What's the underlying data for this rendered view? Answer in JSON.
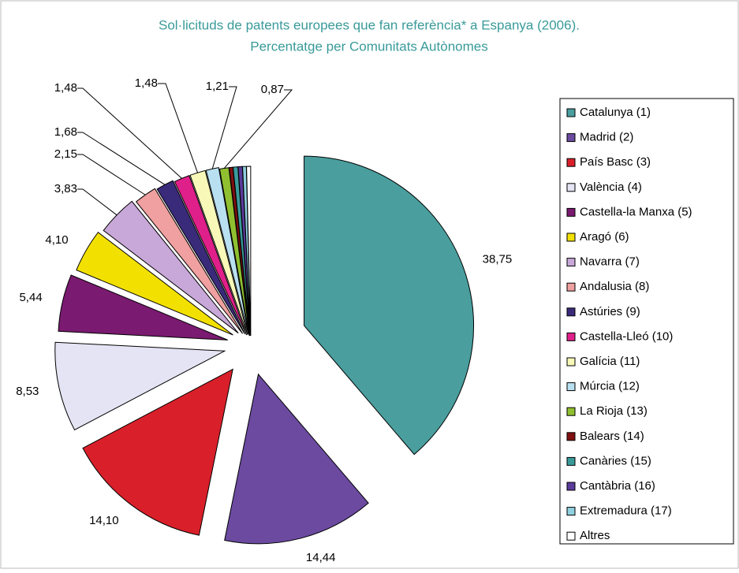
{
  "chart_data": {
    "type": "pie",
    "title": "Sol·licituds de patents europees que fan referència* a Espanya (2006).",
    "subtitle": "Percentatge per Comunitats Autònomes",
    "categories": [
      "Catalunya (1)",
      "Madrid (2)",
      "País Basc (3)",
      "València (4)",
      "Castella-la Manxa (5)",
      "Aragó (6)",
      "Navarra (7)",
      "Andalusia (8)",
      "Astúries (9)",
      "Castella-Lleó (10)",
      "Galícia (11)",
      "Múrcia (12)",
      "La Rioja (13)",
      "Balears (14)",
      "Canàries (15)",
      "Cantàbria (16)",
      "Extremadura (17)",
      "Altres"
    ],
    "values": [
      38.75,
      14.44,
      14.1,
      8.53,
      5.44,
      4.1,
      3.83,
      2.15,
      1.68,
      1.48,
      1.48,
      1.21,
      0.87,
      0.35,
      0.45,
      0.4,
      0.35,
      0.39
    ],
    "value_labels": [
      "38,75",
      "14,44",
      "14,10",
      "8,53",
      "5,44",
      "4,10",
      "3,83",
      "2,15",
      "1,68",
      "1,48",
      "1,48",
      "1,21",
      "0,87",
      null,
      null,
      null,
      null,
      null
    ],
    "colors": [
      "#4a9e9e",
      "#6b4aa0",
      "#d9202a",
      "#e4e4f4",
      "#7a1a70",
      "#f2e000",
      "#c8a8d8",
      "#f0a0a0",
      "#3a2a7a",
      "#e0208a",
      "#f8f8b8",
      "#b8e0f0",
      "#90c030",
      "#801010",
      "#3a9a9a",
      "#5a3a9a",
      "#90d0e0",
      "#ffffff"
    ],
    "legend": "right"
  }
}
